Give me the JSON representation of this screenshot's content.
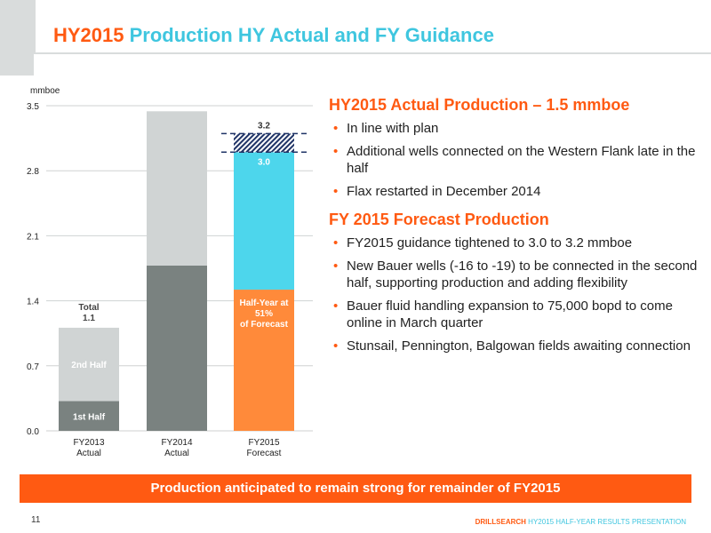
{
  "title": {
    "part1": "HY2015",
    "part2": " Production HY Actual and FY Guidance"
  },
  "chart_data": {
    "type": "bar",
    "ylabel": "mmboe",
    "ylim": [
      0,
      3.5
    ],
    "yticks": [
      0.0,
      0.7,
      1.4,
      2.1,
      2.8,
      3.5
    ],
    "ytick_labels": [
      "0.0",
      "0.7",
      "1.4",
      "2.1",
      "2.8",
      "3.5"
    ],
    "categories": [
      {
        "line1": "FY2013",
        "line2": "Actual"
      },
      {
        "line1": "FY2014",
        "line2": "Actual"
      },
      {
        "line1": "FY2015",
        "line2": "Forecast"
      }
    ],
    "series": [
      {
        "name": "1st Half",
        "values": [
          0.32,
          1.78,
          1.52
        ]
      },
      {
        "name": "2nd Half",
        "values": [
          0.79,
          1.66,
          1.48
        ]
      },
      {
        "name": "Guidance range",
        "values": [
          0,
          0,
          0.2
        ]
      }
    ],
    "annotations": {
      "fy13_first_half": "1st Half",
      "fy13_second_half": "2nd Half",
      "fy13_total_line1": "Total",
      "fy13_total_line2": "1.1",
      "fy15_low": "3.0",
      "fy15_high": "3.2",
      "fy15_half_line1": "Half-Year at",
      "fy15_half_line2": "51%",
      "fy15_half_line3": "of Forecast"
    },
    "guidance_low": 3.0,
    "guidance_high": 3.2,
    "grid": true,
    "colors": {
      "grid": "#cfd2d2",
      "first_half": "#7a8280",
      "second_half": "#d0d4d4",
      "forecast_first": "#ff8a3a",
      "forecast_second": "#4dd6ec",
      "dash": "#1f3366"
    }
  },
  "right": {
    "heading1": "HY2015 Actual Production – 1.5 mmboe",
    "bullets1": [
      "In line with plan",
      "Additional wells connected on the Western Flank late in the half",
      "Flax restarted in December 2014"
    ],
    "heading2": "FY 2015 Forecast Production",
    "bullets2": [
      "FY2015 guidance tightened to 3.0 to 3.2 mmboe",
      "New Bauer wells (-16 to -19) to be connected in the second half, supporting production and adding flexibility",
      "Bauer fluid handling expansion to 75,000 bopd to come online in March quarter",
      "Stunsail, Pennington, Balgowan fields awaiting connection"
    ],
    "bullet_glyph": "•"
  },
  "banner": "Production anticipated to remain strong for remainder of FY2015",
  "page_number": "11",
  "footer": {
    "brand": "DRILLSEARCH",
    "rest": " HY2015 HALF-YEAR RESULTS PRESENTATION"
  },
  "colors": {
    "accent_orange": "#ff5a12",
    "accent_cyan": "#3fc6df"
  }
}
